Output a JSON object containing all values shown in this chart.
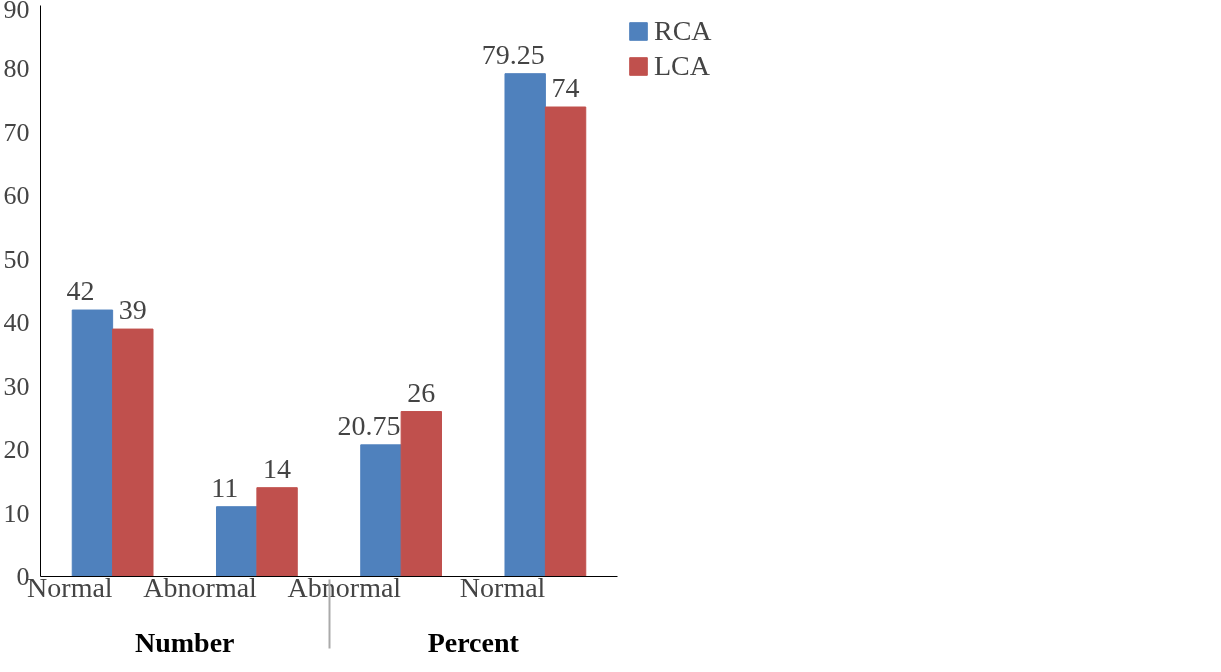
{
  "chart_data": {
    "type": "bar",
    "categories": [
      "Normal",
      "Abnormal",
      "Abnormal",
      "Normal"
    ],
    "annotations": [
      "Number",
      "Percent"
    ],
    "series": [
      {
        "name": "RCA",
        "color": "#4f81bd",
        "values": [
          42,
          11,
          20.75,
          79.25
        ]
      },
      {
        "name": "LCA",
        "color": "#c0504d",
        "values": [
          39,
          14,
          26,
          74
        ]
      }
    ],
    "ylim": [
      0,
      90
    ],
    "yticks": [
      0,
      10,
      20,
      30,
      40,
      50,
      60,
      70,
      80,
      90
    ],
    "grid": false,
    "legend": "top right",
    "data_labels": true
  }
}
